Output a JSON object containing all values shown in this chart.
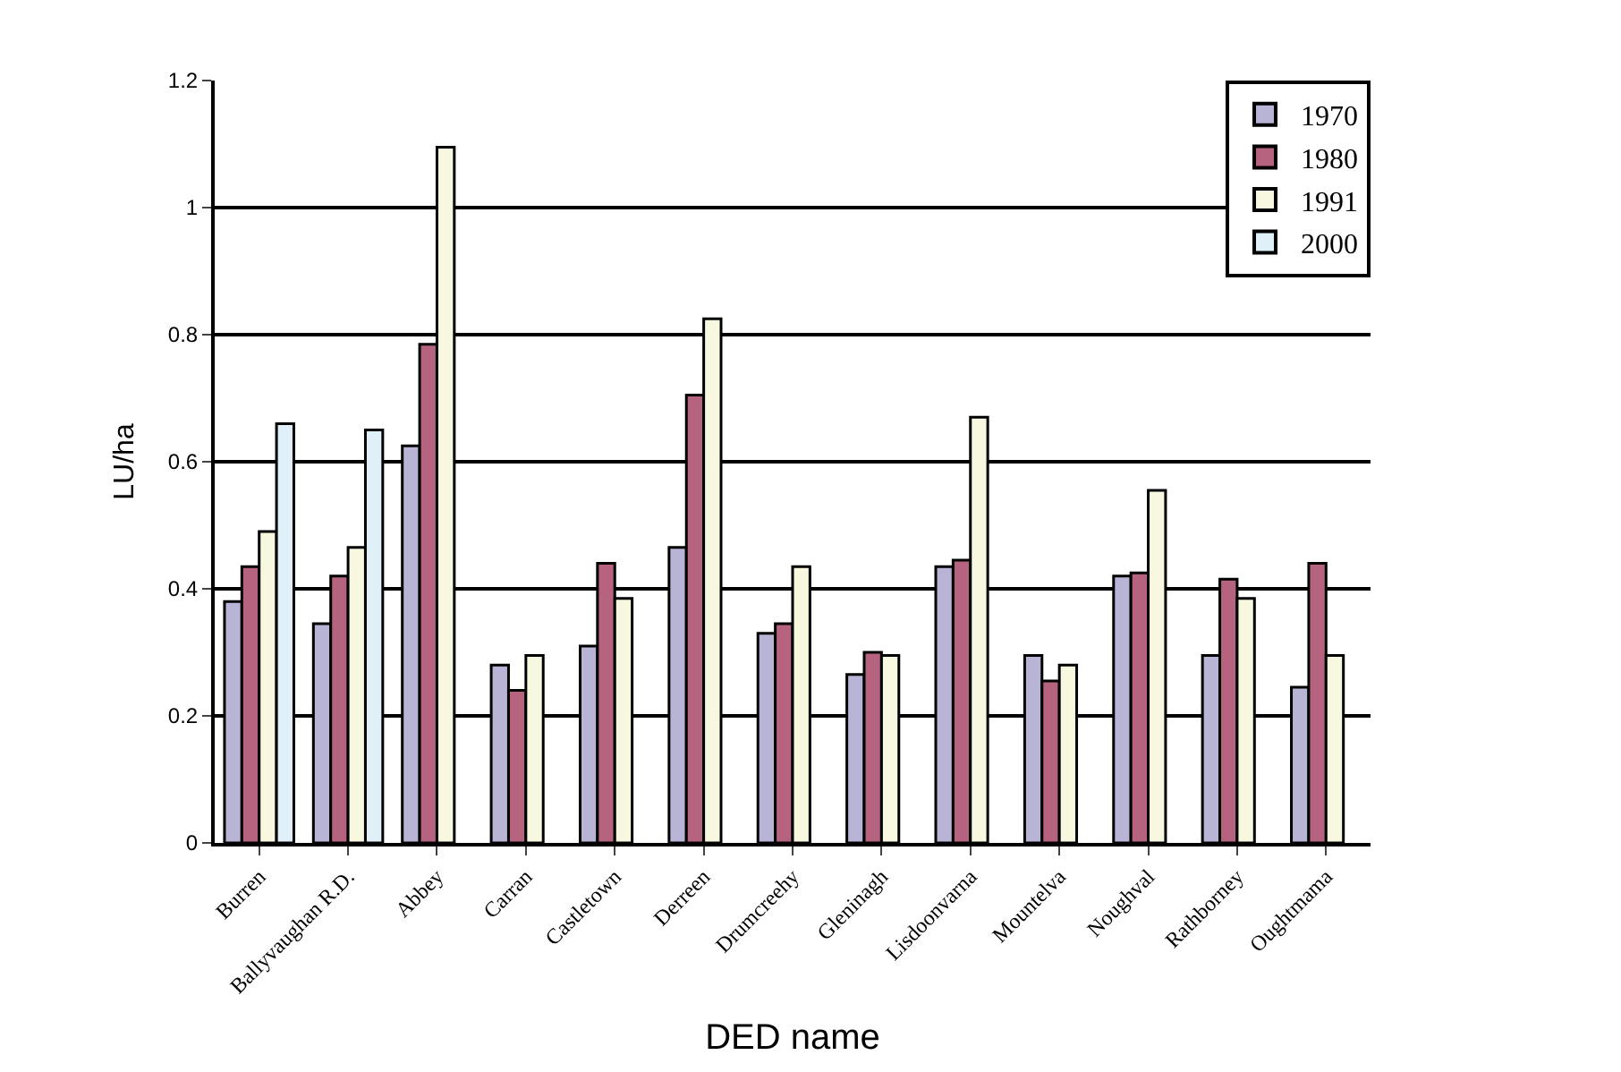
{
  "chart_data": {
    "type": "bar",
    "xlabel": "DED name",
    "ylabel": "LU/ha",
    "categories": [
      "Burren",
      "Ballyvaughan R.D.",
      "Abbey",
      "Carran",
      "Castletown",
      "Derreen",
      "Drumcreehy",
      "Gleninagh",
      "Lisdoonvarna",
      "Mountelva",
      "Noughval",
      "Rathborney",
      "Oughtmama"
    ],
    "series": [
      {
        "name": "1970",
        "color": "#b8b4d6",
        "values": [
          0.38,
          0.345,
          0.625,
          0.28,
          0.31,
          0.465,
          0.33,
          0.265,
          0.435,
          0.295,
          0.42,
          0.295,
          0.245
        ]
      },
      {
        "name": "1980",
        "color": "#b5637f",
        "values": [
          0.435,
          0.42,
          0.785,
          0.24,
          0.44,
          0.705,
          0.345,
          0.3,
          0.445,
          0.255,
          0.425,
          0.415,
          0.44
        ]
      },
      {
        "name": "1991",
        "color": "#f8f8e0",
        "values": [
          0.49,
          0.465,
          1.095,
          0.295,
          0.385,
          0.825,
          0.435,
          0.295,
          0.67,
          0.28,
          0.555,
          0.385,
          0.295
        ]
      },
      {
        "name": "2000",
        "color": "#dff0f8",
        "values": [
          0.66,
          0.65,
          null,
          null,
          null,
          null,
          null,
          null,
          null,
          null,
          null,
          null,
          null
        ]
      }
    ],
    "ylim": [
      0,
      1.2
    ],
    "yticks": [
      0,
      0.2,
      0.4,
      0.6,
      0.8,
      1,
      1.2
    ],
    "grid": "y",
    "legend": "top right"
  }
}
